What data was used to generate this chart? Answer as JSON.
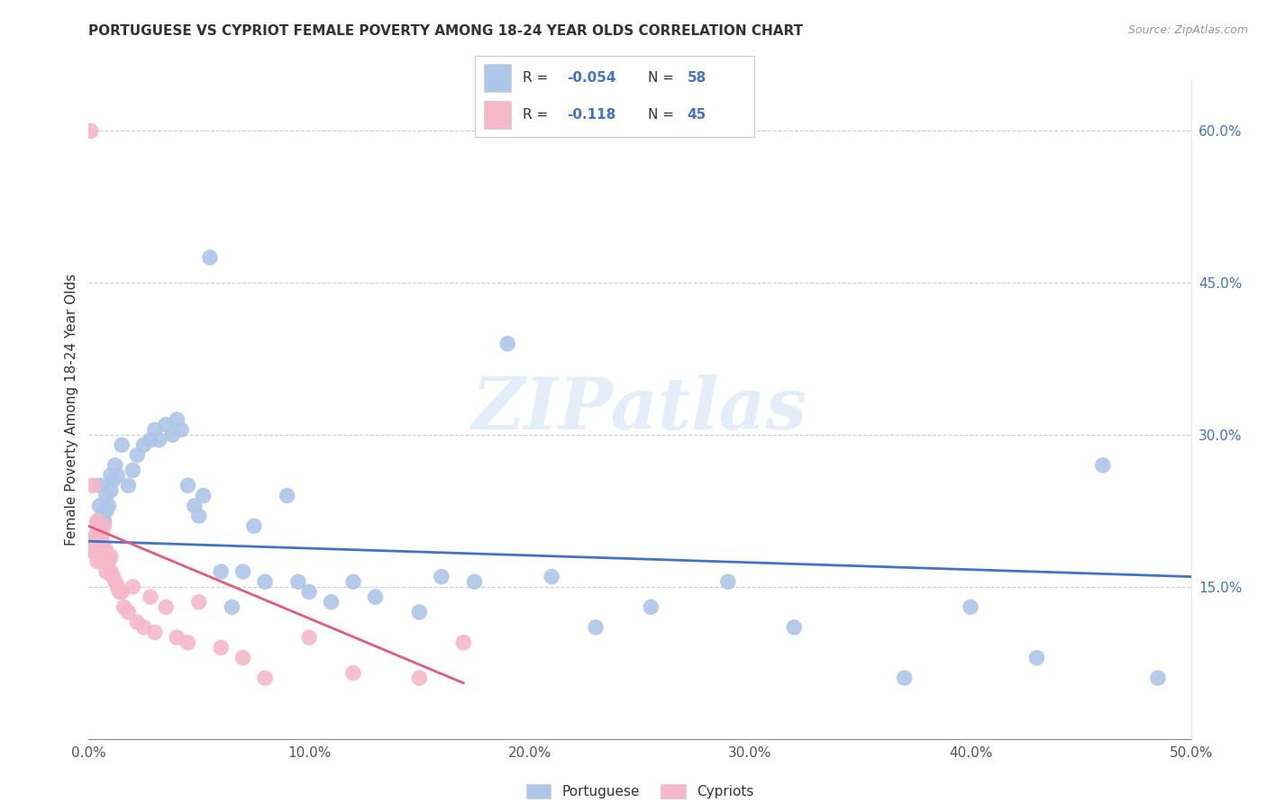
{
  "title": "PORTUGUESE VS CYPRIOT FEMALE POVERTY AMONG 18-24 YEAR OLDS CORRELATION CHART",
  "source": "Source: ZipAtlas.com",
  "ylabel": "Female Poverty Among 18-24 Year Olds",
  "xlim": [
    0.0,
    0.5
  ],
  "ylim": [
    0.0,
    0.65
  ],
  "yticks": [
    0.15,
    0.3,
    0.45,
    0.6
  ],
  "xticks": [
    0.0,
    0.1,
    0.2,
    0.3,
    0.4,
    0.5
  ],
  "ytick_labels": [
    "15.0%",
    "30.0%",
    "45.0%",
    "60.0%"
  ],
  "xtick_labels": [
    "0.0%",
    "10.0%",
    "20.0%",
    "30.0%",
    "40.0%",
    "50.0%"
  ],
  "portuguese_color": "#aec6e8",
  "cypriot_color": "#f4b8c8",
  "trendline_portuguese_color": "#4472c4",
  "trendline_cypriot_color": "#e05c7a",
  "r_portuguese": -0.054,
  "n_portuguese": 58,
  "r_cypriot": -0.118,
  "n_cypriot": 45,
  "watermark": "ZIPatlas",
  "port_trendline_x": [
    0.0,
    0.5
  ],
  "port_trendline_y": [
    0.195,
    0.16
  ],
  "cyp_trendline_x": [
    0.0,
    0.17
  ],
  "cyp_trendline_y": [
    0.21,
    0.055
  ],
  "portuguese_x": [
    0.003,
    0.003,
    0.004,
    0.005,
    0.005,
    0.006,
    0.006,
    0.007,
    0.008,
    0.008,
    0.009,
    0.01,
    0.01,
    0.011,
    0.012,
    0.013,
    0.015,
    0.018,
    0.02,
    0.022,
    0.025,
    0.028,
    0.03,
    0.032,
    0.035,
    0.038,
    0.04,
    0.042,
    0.045,
    0.048,
    0.05,
    0.052,
    0.055,
    0.06,
    0.065,
    0.07,
    0.075,
    0.08,
    0.09,
    0.095,
    0.1,
    0.11,
    0.12,
    0.13,
    0.15,
    0.16,
    0.175,
    0.19,
    0.21,
    0.23,
    0.255,
    0.29,
    0.32,
    0.37,
    0.4,
    0.43,
    0.46,
    0.485
  ],
  "portuguese_y": [
    0.2,
    0.195,
    0.215,
    0.25,
    0.23,
    0.22,
    0.205,
    0.215,
    0.24,
    0.225,
    0.23,
    0.26,
    0.245,
    0.255,
    0.27,
    0.26,
    0.29,
    0.25,
    0.265,
    0.28,
    0.29,
    0.295,
    0.305,
    0.295,
    0.31,
    0.3,
    0.315,
    0.305,
    0.25,
    0.23,
    0.22,
    0.24,
    0.475,
    0.165,
    0.13,
    0.165,
    0.21,
    0.155,
    0.24,
    0.155,
    0.145,
    0.135,
    0.155,
    0.14,
    0.125,
    0.16,
    0.155,
    0.39,
    0.16,
    0.11,
    0.13,
    0.155,
    0.11,
    0.06,
    0.13,
    0.08,
    0.27,
    0.06
  ],
  "cypriot_x": [
    0.001,
    0.001,
    0.002,
    0.002,
    0.002,
    0.003,
    0.003,
    0.003,
    0.004,
    0.004,
    0.004,
    0.005,
    0.005,
    0.006,
    0.006,
    0.007,
    0.007,
    0.008,
    0.008,
    0.009,
    0.01,
    0.01,
    0.011,
    0.012,
    0.013,
    0.014,
    0.015,
    0.016,
    0.018,
    0.02,
    0.022,
    0.025,
    0.028,
    0.03,
    0.035,
    0.04,
    0.045,
    0.05,
    0.06,
    0.07,
    0.08,
    0.1,
    0.12,
    0.15,
    0.17
  ],
  "cypriot_y": [
    0.6,
    0.195,
    0.19,
    0.185,
    0.25,
    0.2,
    0.195,
    0.185,
    0.215,
    0.205,
    0.175,
    0.195,
    0.185,
    0.2,
    0.175,
    0.21,
    0.19,
    0.185,
    0.165,
    0.175,
    0.18,
    0.165,
    0.16,
    0.155,
    0.15,
    0.145,
    0.145,
    0.13,
    0.125,
    0.15,
    0.115,
    0.11,
    0.14,
    0.105,
    0.13,
    0.1,
    0.095,
    0.135,
    0.09,
    0.08,
    0.06,
    0.1,
    0.065,
    0.06,
    0.095
  ]
}
